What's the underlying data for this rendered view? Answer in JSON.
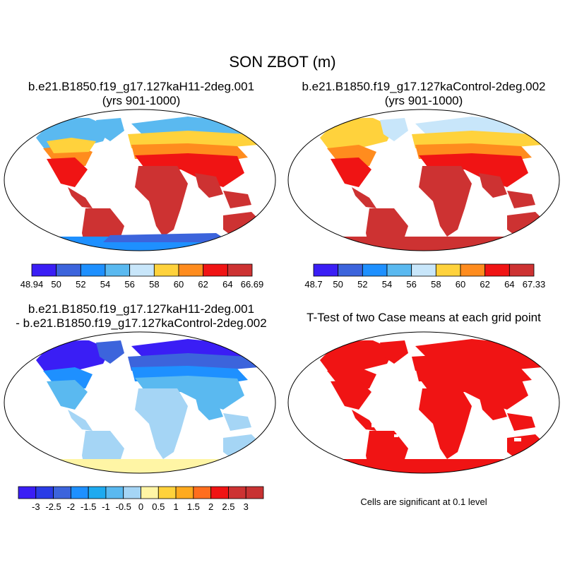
{
  "title": "SON ZBOT (m)",
  "panels": [
    {
      "title_line1": "b.e21.B1850.f19_g17.127kaH11-2deg.001",
      "title_line2": "(yrs 901-1000)",
      "colorbar": {
        "labels": [
          "48.94",
          "50",
          "52",
          "54",
          "56",
          "58",
          "60",
          "62",
          "64",
          "66.69"
        ],
        "colors": [
          "#3a1ef5",
          "#3c64dc",
          "#1e90ff",
          "#5ab9f0",
          "#c8e6fa",
          "#ffd23c",
          "#ff8c1e",
          "#f01414",
          "#cd3232"
        ]
      }
    },
    {
      "title_line1": "b.e21.B1850.f19_g17.127kaControl-2deg.002",
      "title_line2": "(yrs 901-1000)",
      "colorbar": {
        "labels": [
          "48.7",
          "50",
          "52",
          "54",
          "56",
          "58",
          "60",
          "62",
          "64",
          "67.33"
        ],
        "colors": [
          "#3a1ef5",
          "#3c64dc",
          "#1e90ff",
          "#5ab9f0",
          "#c8e6fa",
          "#ffd23c",
          "#ff8c1e",
          "#f01414",
          "#cd3232"
        ]
      }
    },
    {
      "title_line1": "b.e21.B1850.f19_g17.127kaH11-2deg.001",
      "title_line2": "- b.e21.B1850.f19_g17.127kaControl-2deg.002",
      "colorbar": {
        "labels": [
          "-3",
          "-2.5",
          "-2",
          "-1.5",
          "-1",
          "-0.5",
          "0",
          "0.5",
          "1",
          "1.5",
          "2",
          "2.5",
          "3"
        ],
        "colors": [
          "#3a1ef5",
          "#2a3ce6",
          "#3c64dc",
          "#1e90ff",
          "#1eaaf0",
          "#5ab9f0",
          "#a5d5f5",
          "#fff5a5",
          "#ffd23c",
          "#ffaa1e",
          "#ff6e1e",
          "#f01414",
          "#cd3232",
          "#c83232"
        ]
      }
    },
    {
      "title_line1": "T-Test of two Case means at each grid point",
      "note": "Cells are significant at 0.1 level"
    }
  ]
}
